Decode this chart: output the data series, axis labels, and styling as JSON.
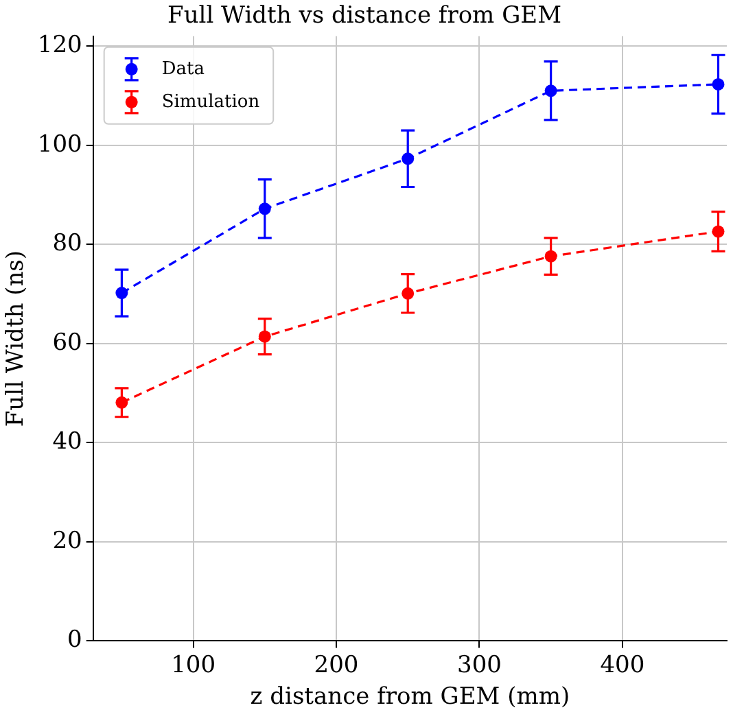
{
  "chart_data": {
    "type": "line",
    "title": "Full Width vs distance from GEM",
    "xlabel": "z distance from GEM (mm)",
    "ylabel": "Full Width (ns)",
    "x": [
      50,
      150,
      250,
      350,
      467
    ],
    "series": [
      {
        "name": "Data",
        "color": "#0000ff",
        "values": [
          70.2,
          87.2,
          97.3,
          111,
          112.3
        ],
        "errors": [
          4.7,
          5.9,
          5.7,
          5.9,
          5.9
        ]
      },
      {
        "name": "Simulation",
        "color": "#ff0000",
        "values": [
          48.1,
          61.4,
          70.1,
          77.6,
          82.6
        ],
        "errors": [
          2.9,
          3.6,
          3.9,
          3.7,
          4.0
        ]
      }
    ],
    "xlim": [
      30,
      473
    ],
    "xticks": [
      100,
      200,
      300,
      400
    ],
    "ylim": [
      0,
      122
    ],
    "yticks": [
      0,
      20,
      40,
      60,
      80,
      100,
      120
    ],
    "grid": true,
    "legend": "top left",
    "marker": "circle",
    "line_style": "dashed"
  }
}
